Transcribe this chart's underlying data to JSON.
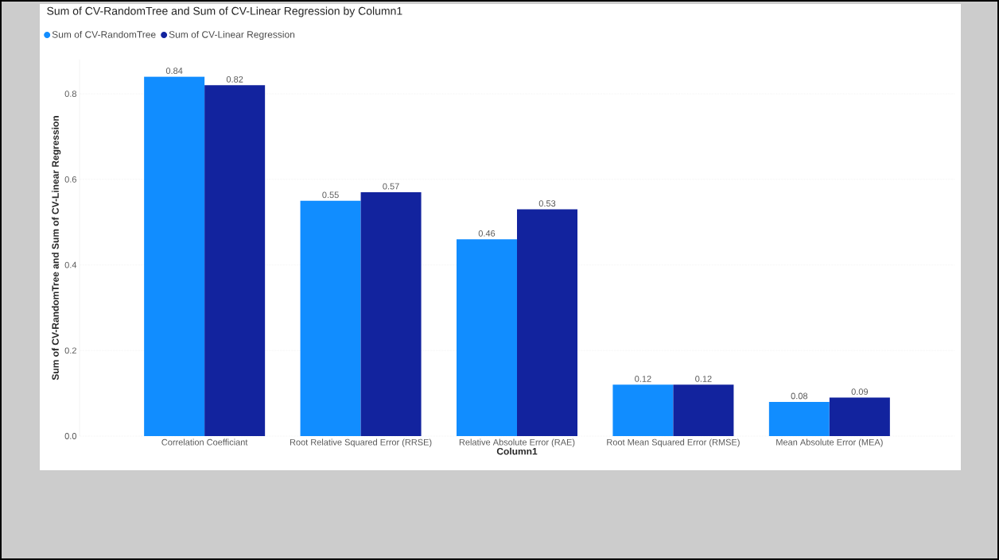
{
  "chart_data": {
    "type": "bar",
    "title": "Sum of CV-RandomTree and Sum of CV-Linear Regression by Column1",
    "xlabel": "Column1",
    "ylabel": "Sum of CV-RandomTree and Sum of CV-Linear Regression",
    "categories": [
      "Correlation Coefficiant",
      "Root Relative Squared Error (RRSE)",
      "Relative Absolute Error (RAE)",
      "Root Mean Squared Error (RMSE)",
      "Mean Absolute Error (MEA)"
    ],
    "series": [
      {
        "name": "Sum of CV-RandomTree",
        "color": "#118dff",
        "values": [
          0.84,
          0.55,
          0.46,
          0.12,
          0.08
        ]
      },
      {
        "name": "Sum of CV-Linear Regression",
        "color": "#12239e",
        "values": [
          0.82,
          0.57,
          0.53,
          0.12,
          0.09
        ]
      }
    ],
    "ylim": [
      0,
      0.88
    ],
    "yticks": [
      {
        "value": 0,
        "label": "0.0"
      },
      {
        "value": 0.2,
        "label": "0.2"
      },
      {
        "value": 0.4,
        "label": "0.4"
      },
      {
        "value": 0.6,
        "label": "0.6"
      },
      {
        "value": 0.8,
        "label": "0.8"
      }
    ],
    "data_labels": true,
    "grid": "y",
    "legend": "top left"
  }
}
